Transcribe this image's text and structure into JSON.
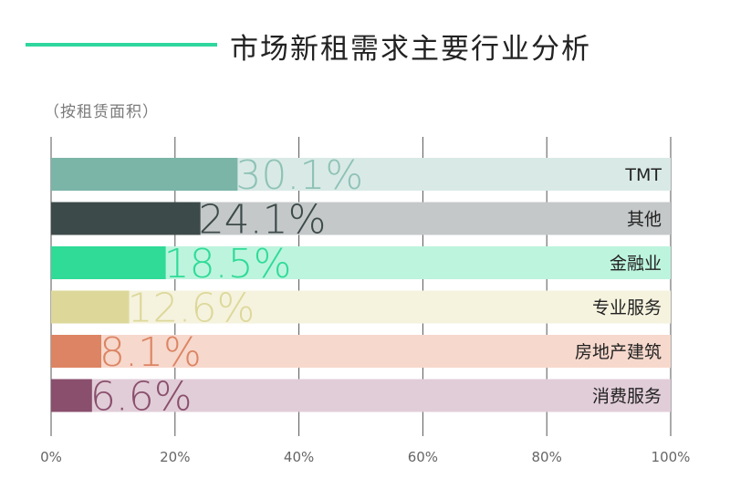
{
  "header": {
    "title": "市场新租需求主要行业分析",
    "subtitle": "（按租赁面积）"
  },
  "chart_data": {
    "type": "bar",
    "orientation": "horizontal",
    "categories": [
      "TMT",
      "其他",
      "金融业",
      "专业服务",
      "房地产建筑",
      "消费服务"
    ],
    "values": [
      30.1,
      24.1,
      18.5,
      12.6,
      8.1,
      6.6
    ],
    "value_labels": [
      "30.1%",
      "24.1%",
      "18.5%",
      "12.6%",
      "8.1%",
      "6.6%"
    ],
    "xlim": [
      0,
      100
    ],
    "x_ticks": [
      "0%",
      "20%",
      "40%",
      "60%",
      "80%",
      "100%"
    ],
    "grid": true,
    "colors": {
      "bars": [
        "#7ab5a8",
        "#3d4a4a",
        "#2fdb97",
        "#ddd89a",
        "#dc8463",
        "#8a4f6d"
      ],
      "tracks": [
        "#d9eae6",
        "#c4c8c8",
        "#bdf4de",
        "#f5f3de",
        "#f6d8cc",
        "#e1cdd8"
      ],
      "labels": [
        "#8fc2b6",
        "#3d4a4a",
        "#2fdb97",
        "#ddd89a",
        "#dc8463",
        "#8a4f6d"
      ]
    }
  }
}
